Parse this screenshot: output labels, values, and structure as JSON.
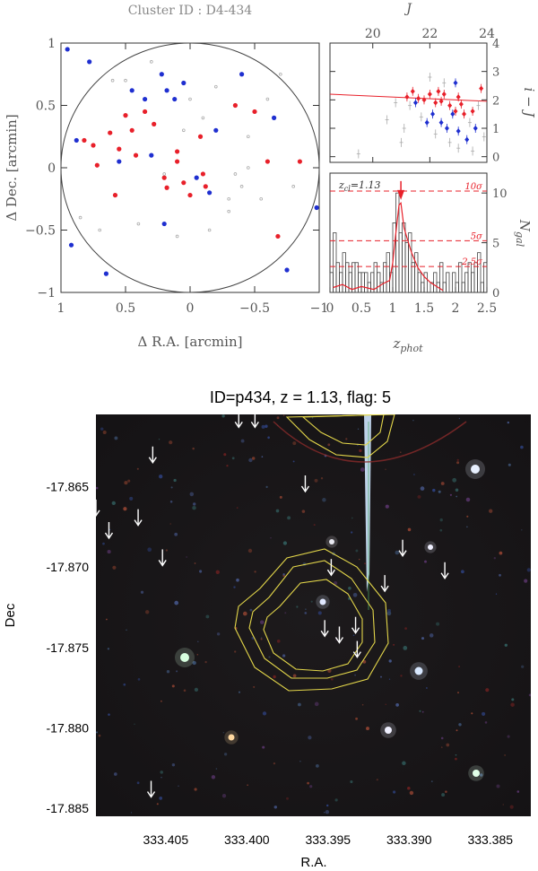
{
  "chart_data": [
    {
      "type": "scatter",
      "title": "Cluster ID : D4-434",
      "xlabel": "Δ R.A. [arcmin]",
      "ylabel": "Δ Dec. [arcmin]",
      "xlim": [
        1,
        -1
      ],
      "ylim": [
        -1,
        1
      ],
      "xticks": [
        1,
        0.5,
        0,
        -0.5,
        -1
      ],
      "xtick_labels": [
        "1",
        "0.5",
        "0",
        "−0.5",
        "−1"
      ],
      "yticks": [
        -1,
        -0.5,
        0,
        0.5,
        1
      ],
      "ytick_labels": [
        "−1",
        "−0.5",
        "0",
        "0.5",
        "1"
      ],
      "circle_radius": 1,
      "series": [
        {
          "color": "#e8202a",
          "points": [
            [
              0.82,
              0.22
            ],
            [
              0.75,
              0.18
            ],
            [
              0.72,
              0.02
            ],
            [
              0.62,
              0.28
            ],
            [
              0.55,
              0.15
            ],
            [
              0.5,
              0.42
            ],
            [
              0.45,
              0.3
            ],
            [
              0.42,
              0.1
            ],
            [
              0.35,
              0.45
            ],
            [
              0.28,
              0.35
            ],
            [
              0.1,
              0.05
            ],
            [
              0.05,
              -0.12
            ],
            [
              0.0,
              -0.22
            ],
            [
              -0.08,
              0.25
            ],
            [
              -0.1,
              -0.05
            ],
            [
              -0.12,
              -0.15
            ],
            [
              -0.35,
              0.5
            ],
            [
              -0.5,
              0.45
            ],
            [
              -0.6,
              0.05
            ],
            [
              -0.68,
              -0.55
            ],
            [
              0.1,
              0.13
            ],
            [
              0.18,
              -0.16
            ],
            [
              0.2,
              -0.08
            ],
            [
              0.58,
              -0.22
            ],
            [
              -0.85,
              0.05
            ]
          ]
        },
        {
          "color": "#1f2fd0",
          "points": [
            [
              0.95,
              0.95
            ],
            [
              0.88,
              0.22
            ],
            [
              0.78,
              0.85
            ],
            [
              0.55,
              0.05
            ],
            [
              0.45,
              0.62
            ],
            [
              0.35,
              0.55
            ],
            [
              0.22,
              0.75
            ],
            [
              0.18,
              0.62
            ],
            [
              0.12,
              0.55
            ],
            [
              0.05,
              0.68
            ],
            [
              -0.05,
              -0.08
            ],
            [
              -0.15,
              -0.2
            ],
            [
              -0.4,
              0.75
            ],
            [
              -0.65,
              0.4
            ],
            [
              -0.75,
              -0.82
            ],
            [
              -0.98,
              -0.32
            ],
            [
              0.65,
              -0.85
            ],
            [
              0.92,
              -0.62
            ],
            [
              0.2,
              -0.45
            ],
            [
              0.3,
              0.1
            ],
            [
              -0.2,
              0.3
            ]
          ]
        },
        {
          "color": "#aaaaaa",
          "points": [
            [
              0.6,
              0.7
            ],
            [
              0.3,
              0.85
            ],
            [
              0.0,
              0.55
            ],
            [
              -0.2,
              0.65
            ],
            [
              -0.45,
              0.25
            ],
            [
              -0.7,
              0.75
            ],
            [
              0.1,
              -0.55
            ],
            [
              -0.3,
              -0.35
            ],
            [
              -0.55,
              -0.25
            ],
            [
              -0.8,
              -0.15
            ],
            [
              0.4,
              -0.45
            ],
            [
              0.7,
              -0.5
            ],
            [
              -0.1,
              0.4
            ],
            [
              0.2,
              -0.05
            ],
            [
              -0.6,
              0.55
            ],
            [
              0.5,
              0.7
            ],
            [
              0.05,
              0.3
            ],
            [
              -0.35,
              -0.05
            ],
            [
              -0.15,
              -0.5
            ],
            [
              0.85,
              -0.4
            ],
            [
              -0.3,
              -0.25
            ],
            [
              -0.4,
              -0.15
            ],
            [
              -0.45,
              0.0
            ]
          ]
        }
      ]
    },
    {
      "type": "scatter",
      "xlabel": "J",
      "ylabel": "i − J",
      "xlim": [
        18.5,
        24
      ],
      "ylim": [
        -0.2,
        4
      ],
      "xticks": [
        20,
        22,
        24
      ],
      "xtick_labels": [
        "20",
        "22",
        "24"
      ],
      "yticks": [
        0,
        1,
        2,
        3,
        4
      ],
      "ytick_labels": [
        "0",
        "1",
        "2",
        "3",
        "4"
      ],
      "red_sequence_line": [
        [
          18.5,
          2.2
        ],
        [
          24,
          1.95
        ]
      ],
      "series": [
        {
          "color": "#e8202a",
          "points": [
            [
              21.2,
              2.1
            ],
            [
              21.4,
              2.3
            ],
            [
              21.6,
              2.05
            ],
            [
              21.8,
              2.0
            ],
            [
              22.0,
              2.2
            ],
            [
              22.2,
              1.9
            ],
            [
              22.4,
              1.95
            ],
            [
              22.5,
              2.2
            ],
            [
              22.7,
              1.8
            ],
            [
              22.9,
              1.6
            ],
            [
              23.1,
              1.85
            ],
            [
              23.2,
              1.5
            ],
            [
              23.5,
              1.6
            ],
            [
              23.8,
              2.4
            ],
            [
              23.0,
              2.1
            ],
            [
              22.3,
              2.3
            ]
          ]
        },
        {
          "color": "#1f2fd0",
          "points": [
            [
              21.5,
              1.9
            ],
            [
              21.9,
              1.2
            ],
            [
              22.1,
              1.5
            ],
            [
              22.4,
              1.2
            ],
            [
              22.6,
              1.0
            ],
            [
              22.8,
              1.5
            ],
            [
              22.9,
              2.6
            ],
            [
              23.0,
              0.9
            ],
            [
              23.3,
              0.6
            ],
            [
              23.6,
              1.0
            ]
          ]
        },
        {
          "color": "#aaaaaa",
          "points": [
            [
              19.5,
              0.1
            ],
            [
              20.5,
              1.3
            ],
            [
              21.0,
              0.5
            ],
            [
              21.3,
              1.8
            ],
            [
              22.0,
              2.8
            ],
            [
              22.5,
              2.6
            ],
            [
              23.0,
              0.3
            ],
            [
              23.5,
              0.2
            ],
            [
              23.7,
              1.8
            ],
            [
              21.7,
              1.4
            ],
            [
              22.7,
              0.5
            ],
            [
              23.4,
              1.2
            ],
            [
              20.8,
              1.9
            ],
            [
              23.9,
              0.7
            ],
            [
              22.2,
              0.8
            ],
            [
              21.1,
              1.0
            ]
          ]
        }
      ]
    },
    {
      "type": "bar",
      "xlabel": "z_phot",
      "ylabel": "N_gal",
      "xlim": [
        0,
        2.5
      ],
      "ylim": [
        0,
        12
      ],
      "xticks": [
        0,
        0.5,
        1,
        1.5,
        2,
        2.5
      ],
      "xtick_labels": [
        "0",
        "0.5",
        "1",
        "1.5",
        "2",
        "2.5"
      ],
      "yticks": [
        0,
        5,
        10
      ],
      "ytick_labels": [
        "0",
        "5",
        "10"
      ],
      "annotation_zcl": "z",
      "annotation_zcl_sub": "cl",
      "annotation_zcl_value": "=1.13",
      "zcl": 1.13,
      "bin_width": 0.05,
      "bin_starts": [
        0.0,
        0.05,
        0.1,
        0.15,
        0.2,
        0.25,
        0.3,
        0.35,
        0.4,
        0.45,
        0.5,
        0.55,
        0.6,
        0.65,
        0.7,
        0.75,
        0.8,
        0.85,
        0.9,
        0.95,
        1.0,
        1.05,
        1.1,
        1.15,
        1.2,
        1.25,
        1.3,
        1.35,
        1.4,
        1.45,
        1.5,
        1.55,
        1.6,
        1.65,
        1.7,
        1.75,
        1.8,
        1.85,
        1.9,
        1.95,
        2.0,
        2.05,
        2.1,
        2.15,
        2.2,
        2.25,
        2.3,
        2.35,
        2.4,
        2.45
      ],
      "counts": [
        2,
        6,
        3,
        2,
        4,
        3,
        2,
        3,
        3,
        2,
        2,
        2,
        1,
        2,
        3,
        2,
        1,
        3,
        4,
        2,
        7,
        10,
        6,
        7,
        5,
        6,
        3,
        4,
        2,
        1,
        2,
        0,
        1,
        2,
        1,
        3,
        1,
        2,
        0,
        2,
        1,
        3,
        1,
        2,
        3,
        2,
        3,
        4,
        1,
        3
      ],
      "significance_lines": [
        {
          "value": 10.2,
          "label": "10σ"
        },
        {
          "value": 5.2,
          "label": "5σ"
        },
        {
          "value": 2.6,
          "label": "2.5σ"
        }
      ],
      "density_curve": [
        [
          0.05,
          0.5
        ],
        [
          0.2,
          0.8
        ],
        [
          0.35,
          0.3
        ],
        [
          0.5,
          0.6
        ],
        [
          0.7,
          0.3
        ],
        [
          0.85,
          0.9
        ],
        [
          0.95,
          1.2
        ],
        [
          1.0,
          3.0
        ],
        [
          1.05,
          6.0
        ],
        [
          1.1,
          8.8
        ],
        [
          1.13,
          9.0
        ],
        [
          1.18,
          6.5
        ],
        [
          1.25,
          5.0
        ],
        [
          1.3,
          4.0
        ],
        [
          1.4,
          2.5
        ],
        [
          1.5,
          1.6
        ],
        [
          1.6,
          1.0
        ],
        [
          1.7,
          0.6
        ],
        [
          1.8,
          0.2
        ]
      ]
    },
    {
      "type": "scatter",
      "title": "ID=p434, z = 1.13, flag: 5",
      "xlabel": "R.A.",
      "ylabel": "Dec",
      "xlim": [
        333.4093,
        333.3825
      ],
      "ylim": [
        -17.8855,
        -17.8605
      ],
      "xticks": [
        333.405,
        333.4,
        333.395,
        333.39,
        333.385
      ],
      "xtick_labels": [
        "333.405",
        "333.400",
        "333.395",
        "333.390",
        "333.385"
      ],
      "yticks": [
        -17.865,
        -17.87,
        -17.875,
        -17.88,
        -17.885
      ],
      "ytick_labels": [
        "-17.865",
        "-17.870",
        "-17.875",
        "-17.880",
        "-17.885"
      ],
      "member_arrows": [
        [
          333.4005,
          -17.8613
        ],
        [
          333.3995,
          -17.8613
        ],
        [
          333.4058,
          -17.8635
        ],
        [
          333.3964,
          -17.8653
        ],
        [
          333.4093,
          -17.8668
        ],
        [
          333.4067,
          -17.8674
        ],
        [
          333.4085,
          -17.8682
        ],
        [
          333.4052,
          -17.8699
        ],
        [
          333.3904,
          -17.8693
        ],
        [
          333.3948,
          -17.8705
        ],
        [
          333.3915,
          -17.8715
        ],
        [
          333.3952,
          -17.8743
        ],
        [
          333.3933,
          -17.8741
        ],
        [
          333.3878,
          -17.8707
        ],
        [
          333.3943,
          -17.8747
        ],
        [
          333.3932,
          -17.8756
        ],
        [
          333.4059,
          -17.8843
        ]
      ]
    }
  ]
}
